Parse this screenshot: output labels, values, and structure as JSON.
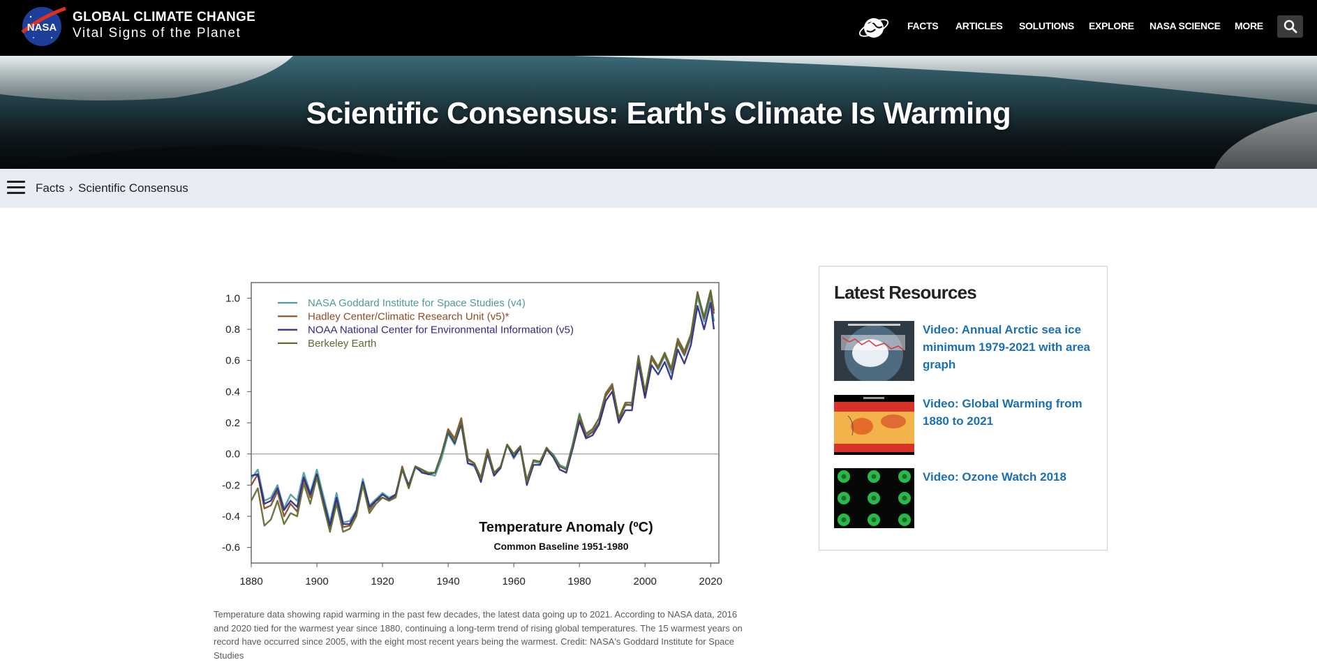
{
  "header": {
    "site_title": "GLOBAL CLIMATE CHANGE",
    "site_subtitle": "Vital Signs of the Planet",
    "logo_text": "NASA",
    "nav": [
      "FACTS",
      "ARTICLES",
      "SOLUTIONS",
      "EXPLORE",
      "NASA SCIENCE",
      "MORE"
    ]
  },
  "hero": {
    "title": "Scientific Consensus: Earth's Climate Is Warming"
  },
  "breadcrumb": {
    "items": [
      "Facts",
      "Scientific Consensus"
    ],
    "separator": "›"
  },
  "figure": {
    "caption": "Temperature data showing rapid warming in the past few decades, the latest data going up to 2021. According to NASA data, 2016 and 2020 tied for the warmest year since 1880, continuing a long-term trend of rising global temperatures. The 15 warmest years on record have occurred since 2005, with the eight most recent years being the warmest. Credit: NASA's Goddard Institute for Space Studies"
  },
  "sidebar": {
    "heading": "Latest Resources",
    "items": [
      {
        "label": "Video: Annual Arctic sea ice minimum 1979-2021 with area graph"
      },
      {
        "label": "Video: Global Warming from 1880 to 2021"
      },
      {
        "label": "Video: Ozone Watch 2018"
      }
    ]
  },
  "colors": {
    "link": "#1a6fb5",
    "topbar": "#000000",
    "crumb_bg": "#e8edf4"
  },
  "chart_data": {
    "type": "line",
    "title": "Temperature Anomaly (ºC)",
    "subtitle": "Common Baseline 1951-1980",
    "xlabel": "",
    "ylabel": "",
    "xlim": [
      1880,
      2021
    ],
    "ylim": [
      -0.7,
      1.1
    ],
    "xticks": [
      1880,
      1900,
      1920,
      1940,
      1960,
      1980,
      2000,
      2020
    ],
    "yticks": [
      -0.6,
      -0.4,
      -0.2,
      0.0,
      0.2,
      0.4,
      0.6,
      0.8,
      1.0
    ],
    "ytick_labels": [
      "-0.6",
      "-0.4",
      "-0.2",
      "0.0",
      "0.2",
      "0.4",
      "0.6",
      "0.8",
      "1.0"
    ],
    "legend_position": "top-left",
    "grid": false,
    "zero_line": true,
    "x": [
      1880,
      1882,
      1884,
      1886,
      1888,
      1890,
      1892,
      1894,
      1896,
      1898,
      1900,
      1902,
      1904,
      1906,
      1908,
      1910,
      1912,
      1914,
      1916,
      1918,
      1920,
      1922,
      1924,
      1926,
      1928,
      1930,
      1932,
      1934,
      1936,
      1938,
      1940,
      1942,
      1944,
      1946,
      1948,
      1950,
      1952,
      1954,
      1956,
      1958,
      1960,
      1962,
      1964,
      1966,
      1968,
      1970,
      1972,
      1974,
      1976,
      1978,
      1980,
      1982,
      1984,
      1986,
      1988,
      1990,
      1992,
      1994,
      1996,
      1998,
      2000,
      2002,
      2004,
      2006,
      2008,
      2010,
      2012,
      2014,
      2016,
      2018,
      2020,
      2021
    ],
    "series": [
      {
        "name": "NASA Goddard Institute for Space Studies (v4)",
        "color": "#4b9ca3",
        "values": [
          -0.16,
          -0.1,
          -0.3,
          -0.28,
          -0.2,
          -0.35,
          -0.26,
          -0.3,
          -0.12,
          -0.25,
          -0.1,
          -0.27,
          -0.44,
          -0.25,
          -0.44,
          -0.43,
          -0.36,
          -0.16,
          -0.33,
          -0.29,
          -0.25,
          -0.28,
          -0.26,
          -0.1,
          -0.21,
          -0.09,
          -0.11,
          -0.13,
          -0.14,
          -0.03,
          0.13,
          0.06,
          0.2,
          -0.06,
          -0.08,
          -0.17,
          0.01,
          -0.13,
          -0.08,
          0.06,
          -0.03,
          0.04,
          -0.17,
          -0.05,
          -0.06,
          0.03,
          0.0,
          -0.07,
          -0.09,
          0.07,
          0.26,
          0.12,
          0.15,
          0.23,
          0.38,
          0.44,
          0.23,
          0.31,
          0.32,
          0.61,
          0.39,
          0.62,
          0.54,
          0.63,
          0.52,
          0.71,
          0.63,
          0.74,
          1.01,
          0.85,
          1.01,
          0.85
        ]
      },
      {
        "name": "Hadley Center/Climatic Research Unit (v5)*",
        "color": "#8b4b26",
        "values": [
          -0.2,
          -0.13,
          -0.35,
          -0.33,
          -0.24,
          -0.4,
          -0.32,
          -0.37,
          -0.16,
          -0.28,
          -0.13,
          -0.32,
          -0.48,
          -0.3,
          -0.47,
          -0.46,
          -0.38,
          -0.18,
          -0.36,
          -0.3,
          -0.28,
          -0.3,
          -0.27,
          -0.08,
          -0.22,
          -0.08,
          -0.1,
          -0.13,
          -0.12,
          0.0,
          0.16,
          0.1,
          0.23,
          -0.03,
          -0.06,
          -0.15,
          0.03,
          -0.12,
          -0.08,
          0.06,
          0.0,
          0.05,
          -0.17,
          -0.04,
          -0.05,
          0.04,
          -0.02,
          -0.08,
          -0.1,
          0.04,
          0.22,
          0.11,
          0.14,
          0.2,
          0.37,
          0.43,
          0.21,
          0.32,
          0.31,
          0.62,
          0.38,
          0.61,
          0.55,
          0.64,
          0.54,
          0.72,
          0.64,
          0.76,
          1.04,
          0.87,
          1.04,
          0.9
        ]
      },
      {
        "name": "NOAA National Center for Environmental Information (v5)",
        "color": "#2e2a86",
        "values": [
          -0.14,
          -0.13,
          -0.32,
          -0.3,
          -0.22,
          -0.36,
          -0.3,
          -0.34,
          -0.15,
          -0.26,
          -0.13,
          -0.3,
          -0.46,
          -0.28,
          -0.45,
          -0.45,
          -0.37,
          -0.18,
          -0.34,
          -0.3,
          -0.26,
          -0.29,
          -0.26,
          -0.1,
          -0.2,
          -0.08,
          -0.12,
          -0.13,
          -0.12,
          0.0,
          0.14,
          0.07,
          0.19,
          -0.06,
          -0.07,
          -0.18,
          0.0,
          -0.14,
          -0.09,
          0.06,
          -0.02,
          0.04,
          -0.2,
          -0.07,
          -0.07,
          0.03,
          -0.02,
          -0.1,
          -0.12,
          0.04,
          0.21,
          0.1,
          0.12,
          0.19,
          0.34,
          0.4,
          0.2,
          0.28,
          0.28,
          0.58,
          0.36,
          0.57,
          0.51,
          0.59,
          0.48,
          0.67,
          0.58,
          0.7,
          0.95,
          0.8,
          0.97,
          0.8
        ]
      },
      {
        "name": "Berkeley Earth",
        "color": "#5d6b2f",
        "values": [
          -0.3,
          -0.22,
          -0.46,
          -0.42,
          -0.3,
          -0.45,
          -0.38,
          -0.4,
          -0.19,
          -0.32,
          -0.15,
          -0.33,
          -0.5,
          -0.32,
          -0.5,
          -0.48,
          -0.4,
          -0.2,
          -0.38,
          -0.32,
          -0.28,
          -0.3,
          -0.28,
          -0.1,
          -0.22,
          -0.08,
          -0.1,
          -0.12,
          -0.12,
          0.0,
          0.15,
          0.08,
          0.21,
          -0.04,
          -0.06,
          -0.16,
          0.02,
          -0.12,
          -0.08,
          0.06,
          0.0,
          0.05,
          -0.18,
          -0.04,
          -0.05,
          0.04,
          -0.01,
          -0.08,
          -0.1,
          0.06,
          0.25,
          0.13,
          0.16,
          0.23,
          0.39,
          0.45,
          0.23,
          0.33,
          0.33,
          0.63,
          0.4,
          0.63,
          0.56,
          0.65,
          0.55,
          0.74,
          0.66,
          0.77,
          1.03,
          0.88,
          1.05,
          0.92
        ]
      }
    ]
  }
}
